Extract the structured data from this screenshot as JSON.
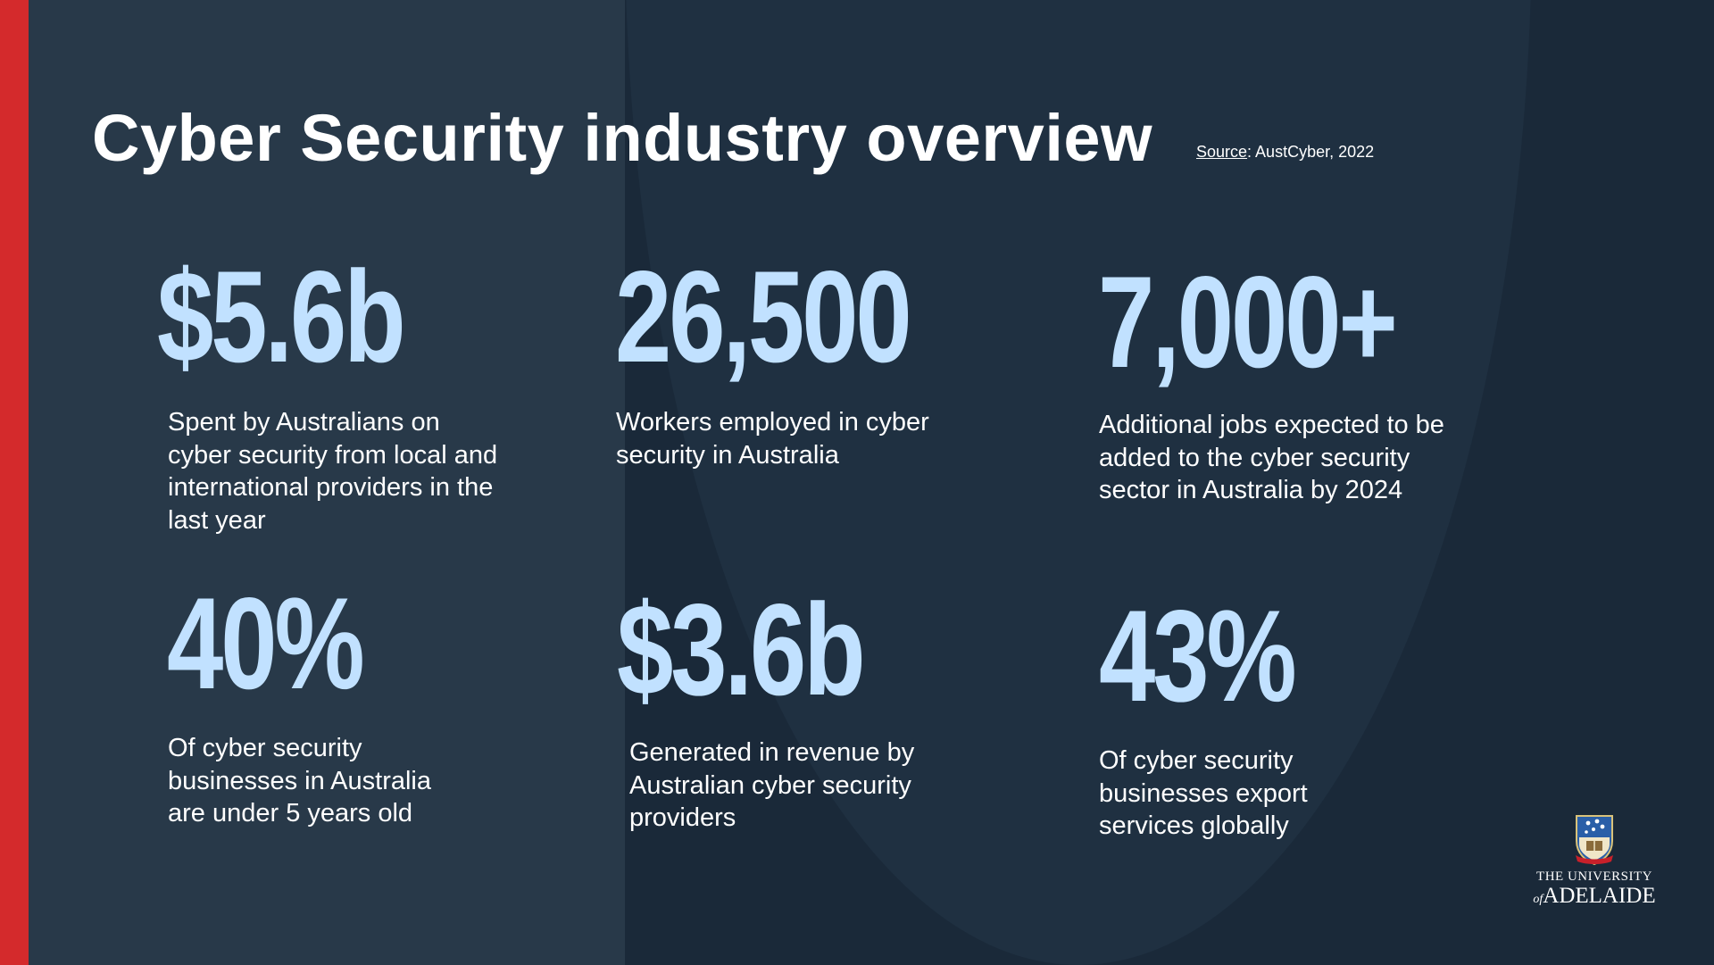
{
  "slide": {
    "title": "Cyber Security industry overview",
    "source_label": "Source",
    "source_text": ": AustCyber, 2022"
  },
  "stats": [
    {
      "value": "$5.6b",
      "description": "Spent by Australians on cyber security from local and international providers in the last year"
    },
    {
      "value": "26,500",
      "description": "Workers employed in cyber security in Australia"
    },
    {
      "value": "7,000+",
      "description": "Additional jobs expected to be added to the cyber security sector in Australia by 2024"
    },
    {
      "value": "40%",
      "description": "Of cyber security businesses in Australia are under 5 years old"
    },
    {
      "value": "$3.6b",
      "description": "Generated in revenue by Australian cyber security providers"
    },
    {
      "value": "43%",
      "description": "Of cyber security businesses export services globally"
    }
  ],
  "logo": {
    "line1": "THE UNIVERSITY",
    "of": "of",
    "line2": "ADELAIDE"
  },
  "colors": {
    "accent_red": "#d42a2c",
    "stat_blue": "#c1e1ff",
    "background": "#1a2939"
  }
}
